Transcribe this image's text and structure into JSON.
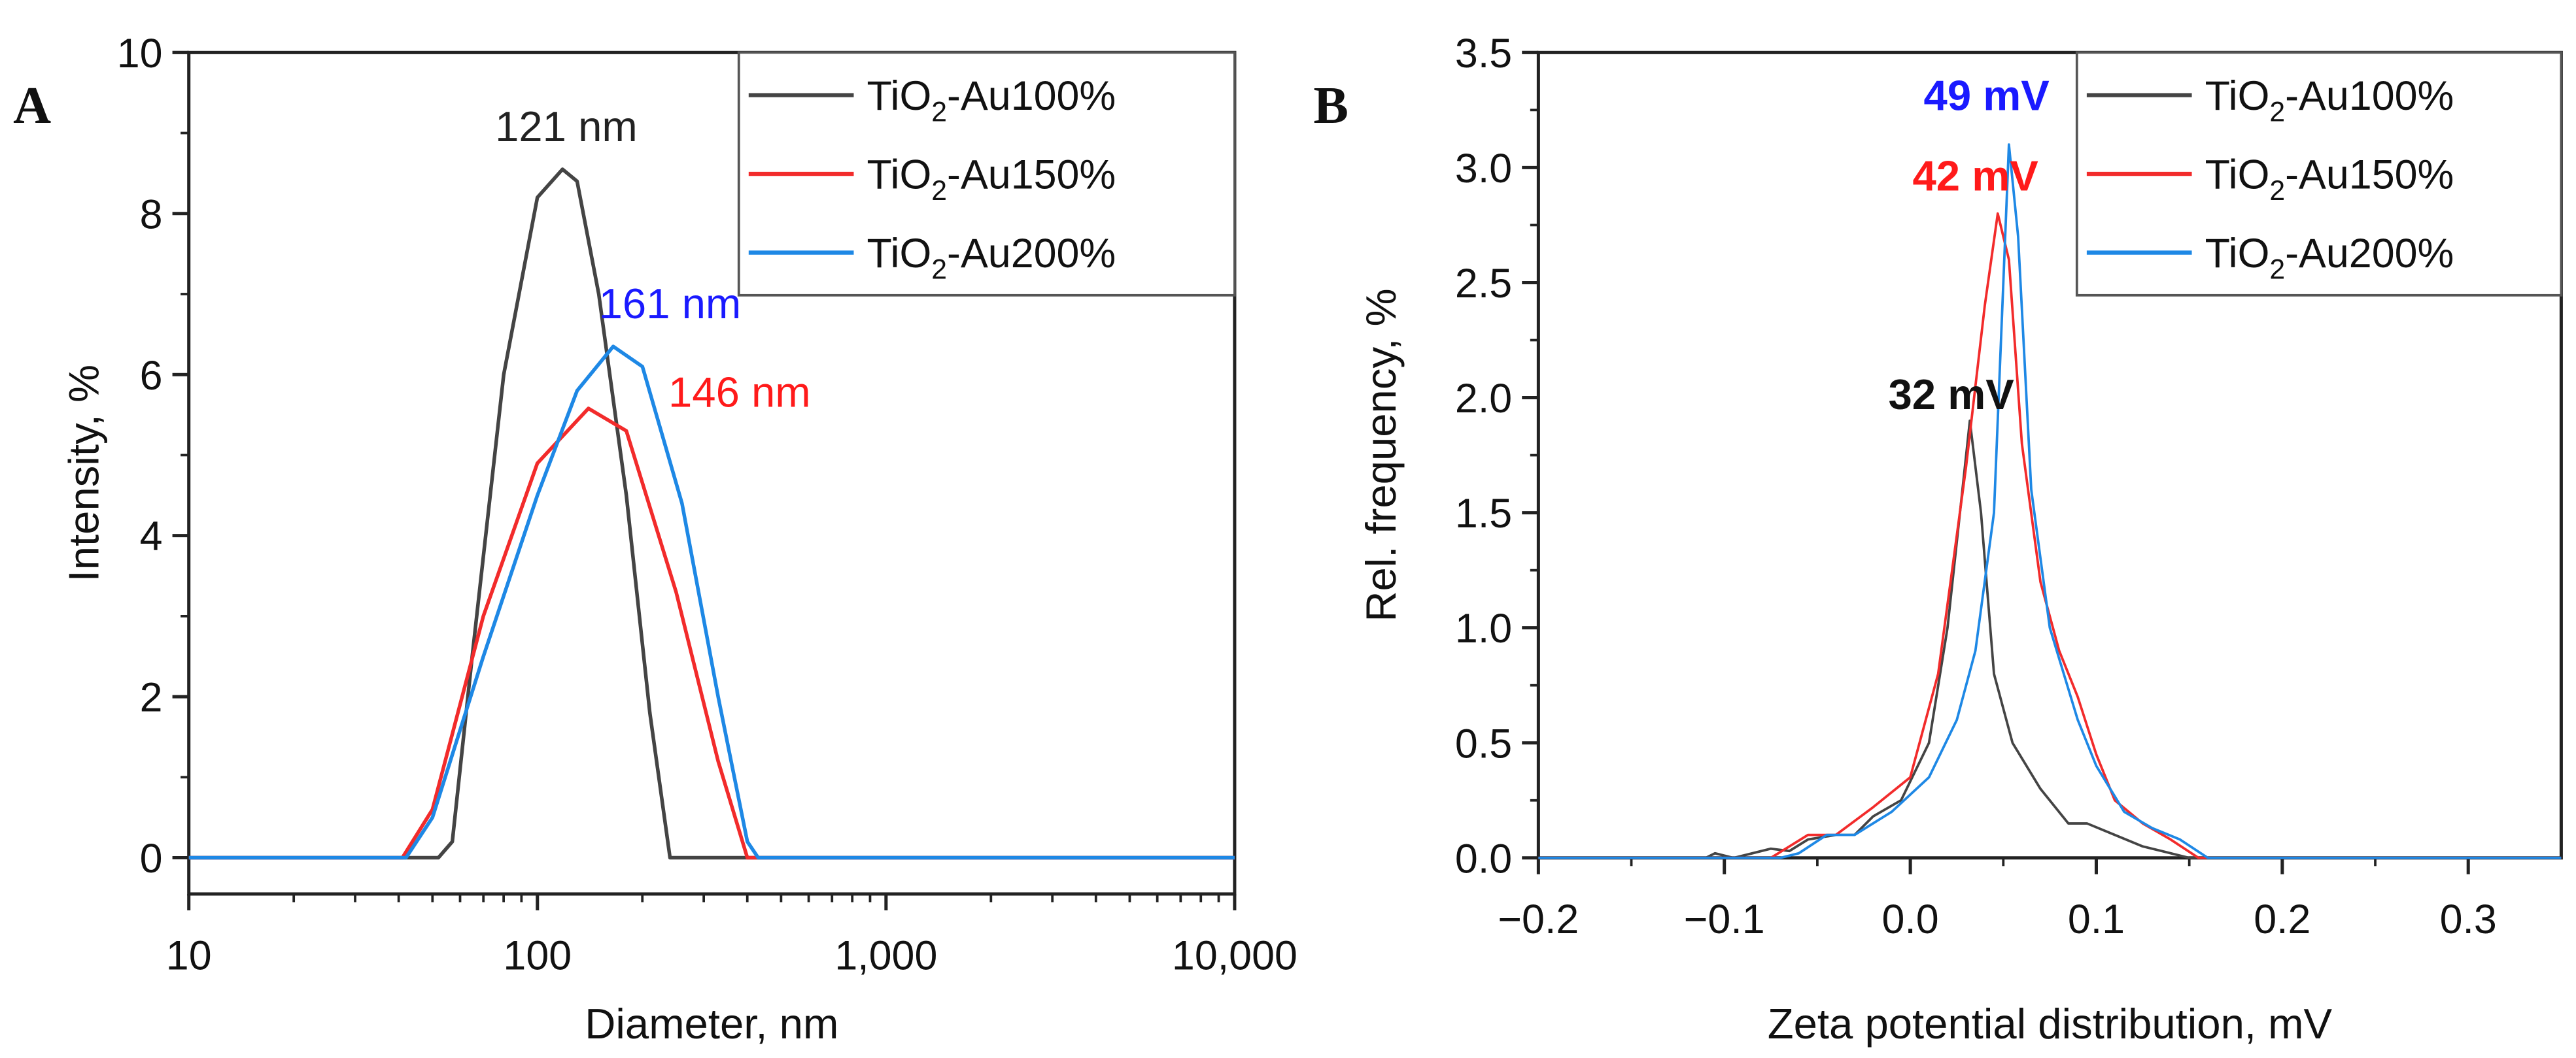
{
  "chart_data": [
    {
      "type": "line",
      "panel_label": "A",
      "xlabel": "Diameter, nm",
      "ylabel": "Intensity, %",
      "xscale": "log",
      "xlim": [
        10,
        10000
      ],
      "ylim": [
        -0.45,
        10
      ],
      "xticks": [
        10,
        100,
        1000,
        10000
      ],
      "xtick_labels": [
        "10",
        "100",
        "1,000",
        "10,000"
      ],
      "yticks": [
        0,
        2,
        4,
        6,
        8,
        10
      ],
      "ytick_labels": [
        "0",
        "2",
        "4",
        "6",
        "8",
        "10"
      ],
      "legend_position": "top-right",
      "series": [
        {
          "name": "TiO2-Au100%",
          "color": "#444444",
          "x": [
            10,
            52,
            57,
            65,
            80,
            100,
            118,
            130,
            150,
            180,
            210,
            240,
            10000
          ],
          "y": [
            0,
            0,
            0.2,
            2.5,
            6,
            8.2,
            8.55,
            8.4,
            7,
            4.5,
            1.8,
            0,
            0
          ]
        },
        {
          "name": "TiO2-Au150%",
          "color": "#f22b2b",
          "x": [
            10,
            41,
            50,
            70,
            100,
            140,
            180,
            250,
            330,
            400,
            10000
          ],
          "y": [
            0,
            0,
            0.6,
            3,
            4.9,
            5.58,
            5.3,
            3.3,
            1.2,
            0,
            0
          ]
        },
        {
          "name": "TiO2-Au200%",
          "color": "#1e88e5",
          "x": [
            10,
            42,
            50,
            70,
            100,
            130,
            165,
            200,
            260,
            330,
            400,
            430,
            10000
          ],
          "y": [
            0,
            0,
            0.5,
            2.5,
            4.5,
            5.8,
            6.35,
            6.1,
            4.4,
            2,
            0.2,
            0,
            0
          ]
        }
      ],
      "annotations": [
        {
          "text": "121 nm",
          "color": "#222222",
          "x": 121,
          "y": 8.9
        },
        {
          "text": "161 nm",
          "color": "#1a1aff",
          "x": 240,
          "y": 6.7
        },
        {
          "text": "146 nm",
          "color": "#ff1a1a",
          "x": 380,
          "y": 5.6
        }
      ]
    },
    {
      "type": "line",
      "panel_label": "B",
      "xlabel": "Zeta potential distribution, mV",
      "ylabel": "Rel. frequency, %",
      "xscale": "linear",
      "xlim": [
        -0.2,
        0.35
      ],
      "ylim": [
        0,
        3.5
      ],
      "xticks": [
        -0.2,
        -0.1,
        0.0,
        0.1,
        0.2,
        0.3
      ],
      "xtick_labels": [
        "−0.2",
        "−0.1",
        "0.0",
        "0.1",
        "0.2",
        "0.3"
      ],
      "yticks": [
        0,
        0.5,
        1,
        1.5,
        2,
        2.5,
        3,
        3.5
      ],
      "ytick_labels": [
        "0.0",
        "0.5",
        "1.0",
        "1.5",
        "2.0",
        "2.5",
        "3.0",
        "3.5"
      ],
      "legend_position": "top-right",
      "series": [
        {
          "name": "TiO2-Au100%",
          "color": "#444444",
          "x": [
            -0.2,
            -0.11,
            -0.105,
            -0.095,
            -0.085,
            -0.075,
            -0.065,
            -0.055,
            -0.04,
            -0.03,
            -0.02,
            -0.005,
            0.01,
            0.02,
            0.028,
            0.032,
            0.038,
            0.045,
            0.055,
            0.07,
            0.085,
            0.095,
            0.11,
            0.125,
            0.135,
            0.15,
            0.35
          ],
          "y": [
            0,
            0,
            0.02,
            0,
            0.02,
            0.04,
            0.03,
            0.08,
            0.1,
            0.1,
            0.18,
            0.25,
            0.5,
            1.0,
            1.6,
            1.9,
            1.5,
            0.8,
            0.5,
            0.3,
            0.15,
            0.15,
            0.1,
            0.05,
            0.03,
            0,
            0
          ]
        },
        {
          "name": "TiO2-Au150%",
          "color": "#f22b2b",
          "x": [
            -0.2,
            -0.075,
            -0.065,
            -0.055,
            -0.04,
            -0.02,
            0,
            0.015,
            0.03,
            0.04,
            0.047,
            0.053,
            0.06,
            0.07,
            0.08,
            0.09,
            0.1,
            0.11,
            0.125,
            0.14,
            0.155,
            0.35
          ],
          "y": [
            0,
            0,
            0.05,
            0.1,
            0.1,
            0.22,
            0.35,
            0.8,
            1.7,
            2.4,
            2.8,
            2.6,
            1.8,
            1.2,
            0.9,
            0.7,
            0.45,
            0.25,
            0.15,
            0.08,
            0,
            0
          ]
        },
        {
          "name": "TiO2-Au200%",
          "color": "#1e88e5",
          "x": [
            -0.2,
            -0.07,
            -0.06,
            -0.045,
            -0.03,
            -0.01,
            0.01,
            0.025,
            0.035,
            0.045,
            0.05,
            0.053,
            0.058,
            0.065,
            0.075,
            0.09,
            0.1,
            0.115,
            0.13,
            0.145,
            0.16,
            0.35
          ],
          "y": [
            0,
            0,
            0.02,
            0.1,
            0.1,
            0.2,
            0.35,
            0.6,
            0.9,
            1.5,
            2.5,
            3.1,
            2.7,
            1.6,
            1.0,
            0.6,
            0.4,
            0.2,
            0.13,
            0.08,
            0,
            0
          ]
        }
      ],
      "annotations": [
        {
          "text": "49 mV",
          "color": "#1a1aff",
          "x": 0.041,
          "y": 3.25,
          "bold": true
        },
        {
          "text": "42 mV",
          "color": "#ff1a1a",
          "x": 0.035,
          "y": 2.9,
          "bold": true
        },
        {
          "text": "32 mV",
          "color": "#111111",
          "x": 0.022,
          "y": 1.95,
          "bold": true
        }
      ]
    }
  ]
}
